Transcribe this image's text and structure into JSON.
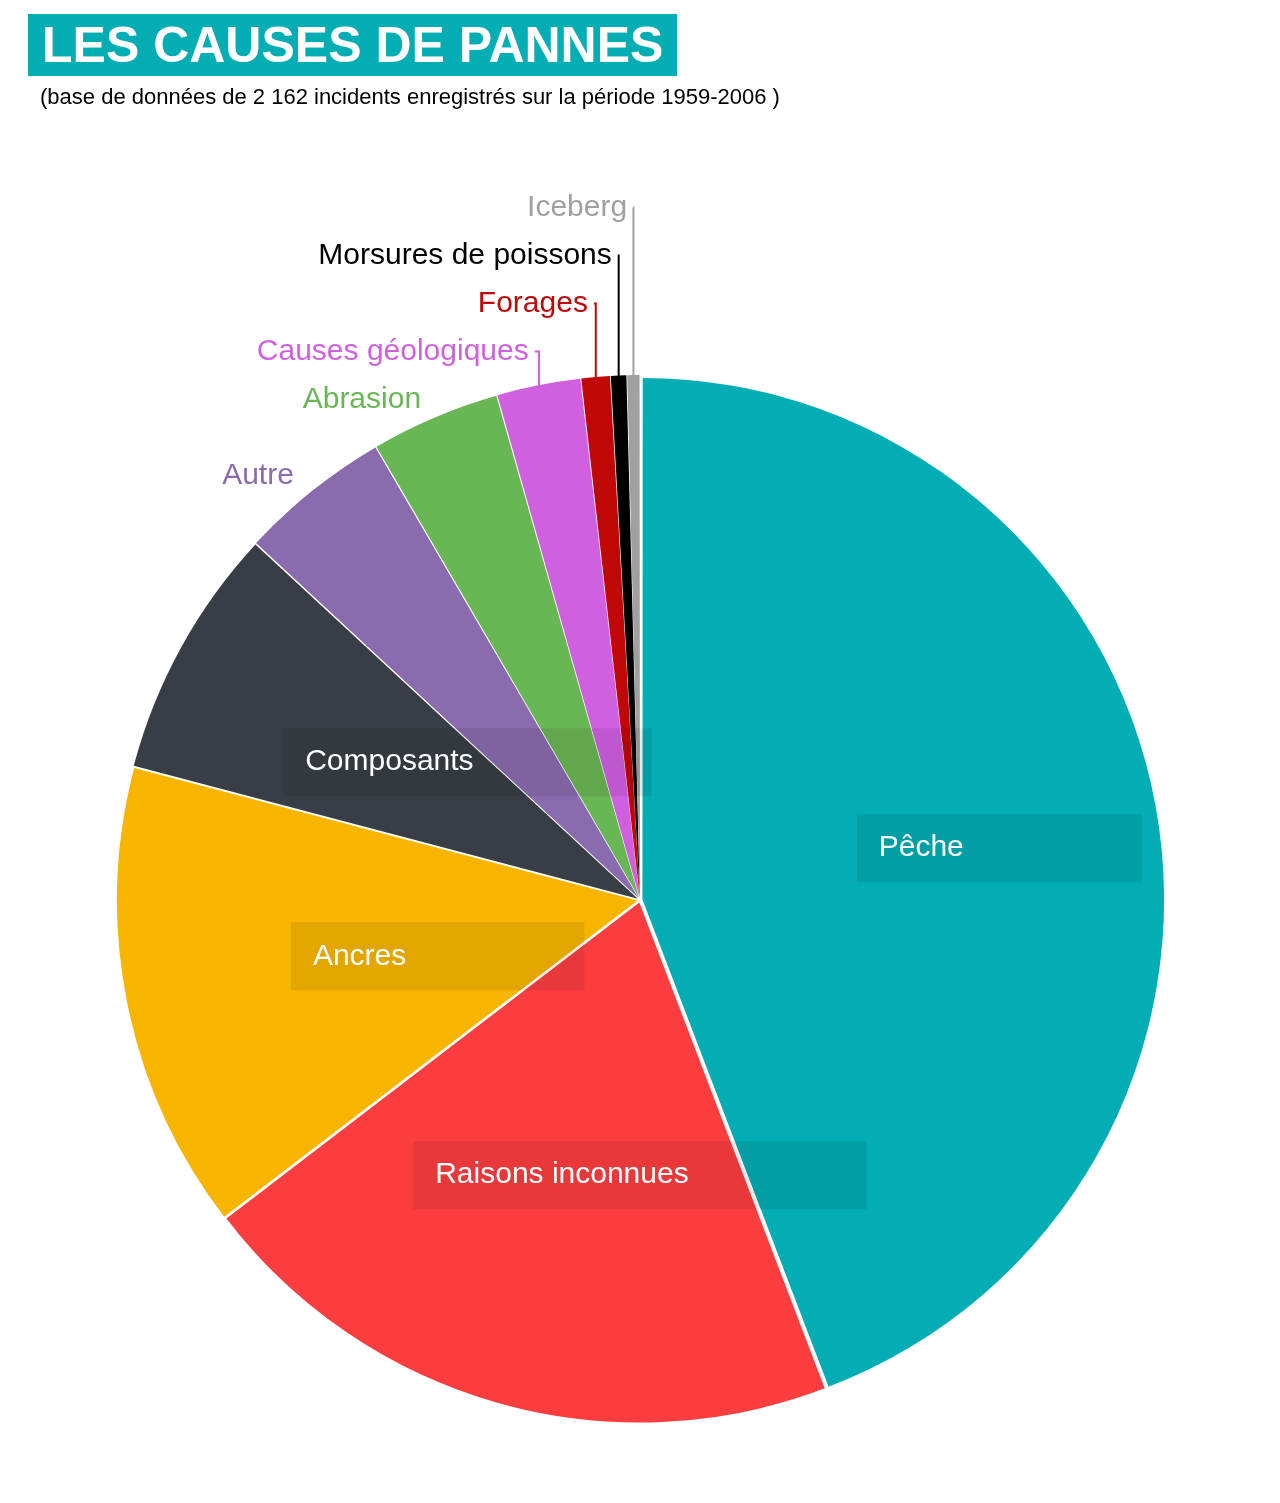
{
  "chart_data": {
    "type": "pie",
    "title": "LES CAUSES DE PANNES",
    "annotations": [
      "(base de données de 2 162 incidents enregistrés sur la période 1959-2006 )"
    ],
    "categories": [
      "Pêche",
      "Raisons inconnues",
      "Ancres",
      "Composants",
      "Autre",
      "Abrasion",
      "Causes géologiques",
      "Forages",
      "Morsures de poissons",
      "Iceberg"
    ],
    "values": [
      44.2,
      20.4,
      14.5,
      7.8,
      4.7,
      4,
      2.6,
      0.9,
      0.5,
      0.4
    ],
    "colors": [
      "#02adb4",
      "#fc3d3f",
      "#f7b500",
      "#393d45",
      "#8a6bae",
      "#69b655",
      "#d060e0",
      "#c00808",
      "#000000",
      "#a0a0a0"
    ],
    "legend": false
  }
}
